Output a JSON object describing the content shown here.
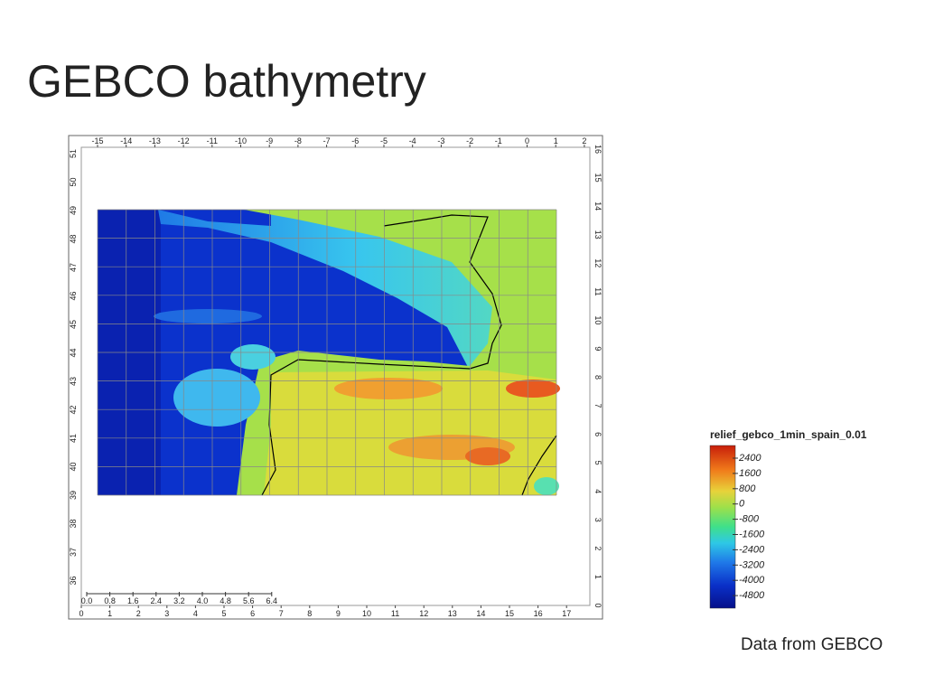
{
  "title": "GEBCO bathymetry",
  "map": {
    "top_ticks": [
      "-15",
      "-14",
      "-13",
      "-12",
      "-11",
      "-10",
      "-9",
      "-8",
      "-7",
      "-6",
      "-5",
      "-4",
      "-3",
      "-2",
      "-1",
      "0",
      "1",
      "2"
    ],
    "left_ticks": [
      "51",
      "50",
      "49",
      "48",
      "47",
      "46",
      "45",
      "44",
      "43",
      "42",
      "41",
      "40",
      "39",
      "38",
      "37",
      "36"
    ],
    "right_ticks": [
      "16",
      "15",
      "14",
      "13",
      "12",
      "11",
      "10",
      "9",
      "8",
      "7",
      "6",
      "5",
      "4",
      "3",
      "2",
      "1",
      "0"
    ],
    "bottom_ticks": [
      "0",
      "1",
      "2",
      "3",
      "4",
      "5",
      "6",
      "7",
      "8",
      "9",
      "10",
      "11",
      "12",
      "13",
      "14",
      "15",
      "16",
      "17"
    ],
    "scale_bar": [
      "0.0",
      "0.8",
      "1.6",
      "2.4",
      "3.2",
      "4.0",
      "4.8",
      "5.6",
      "6.4"
    ]
  },
  "legend": {
    "title": "relief_gebco_1min_spain_0.01",
    "labels": [
      "2400",
      "1600",
      "800",
      "0",
      "-800",
      "-1600",
      "-2400",
      "-3200",
      "-4000",
      "-4800"
    ]
  },
  "caption": "Data from GEBCO"
}
